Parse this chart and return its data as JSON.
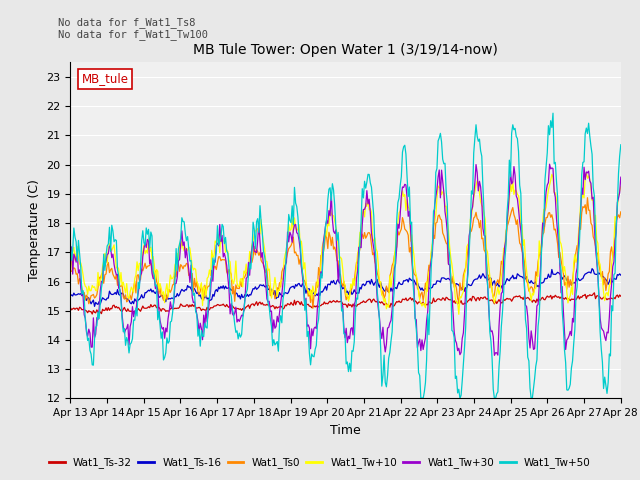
{
  "title": "MB Tule Tower: Open Water 1 (3/19/14-now)",
  "xlabel": "Time",
  "ylabel": "Temperature (C)",
  "ylim": [
    12.0,
    23.5
  ],
  "yticks": [
    12.0,
    13.0,
    14.0,
    15.0,
    16.0,
    17.0,
    18.0,
    19.0,
    20.0,
    21.0,
    22.0,
    23.0
  ],
  "xtick_labels": [
    "Apr 13",
    "Apr 14",
    "Apr 15",
    "Apr 16",
    "Apr 17",
    "Apr 18",
    "Apr 19",
    "Apr 20",
    "Apr 21",
    "Apr 22",
    "Apr 23",
    "Apr 24",
    "Apr 25",
    "Apr 26",
    "Apr 27",
    "Apr 28"
  ],
  "annotation_line1": "No data for f_Wat1_Ts8",
  "annotation_line2": "No data for f_Wat1_Tw100",
  "legend_label": "MB_tule",
  "series_labels": [
    "Wat1_Ts-32",
    "Wat1_Ts-16",
    "Wat1_Ts0",
    "Wat1_Tw+10",
    "Wat1_Tw+30",
    "Wat1_Tw+50"
  ],
  "series_colors": [
    "#cc0000",
    "#0000cc",
    "#ff8800",
    "#ffff00",
    "#9900cc",
    "#00cccc"
  ],
  "background_color": "#e8e8e8",
  "plot_bg_color": "#f0f0f0",
  "grid_color": "#ffffff",
  "n_points": 480
}
